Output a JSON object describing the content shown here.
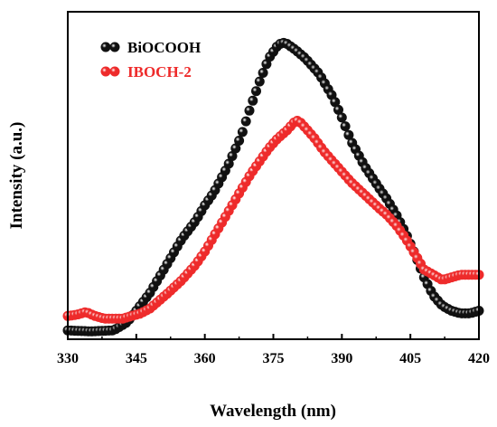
{
  "chart_data": {
    "type": "scatter",
    "xlabel": "Wavelength (nm)",
    "ylabel": "Intensity (a.u.)",
    "xlim": [
      330,
      420
    ],
    "ylim": [
      0,
      1
    ],
    "xticks": [
      "330",
      "345",
      "360",
      "375",
      "390",
      "405",
      "420"
    ],
    "yticks_shown": false,
    "grid": false,
    "legend_position": "top-left",
    "series": [
      {
        "name": "BiOCOOH",
        "color": "#111111",
        "x": [
          330,
          335,
          340,
          343,
          345,
          348,
          350,
          352,
          355,
          358,
          360,
          362,
          365,
          368,
          370,
          372,
          374,
          376,
          377,
          378,
          380,
          382,
          385,
          388,
          390,
          392,
          395,
          398,
          400,
          402,
          404,
          406,
          408,
          410,
          412,
          414,
          416,
          418,
          420
        ],
        "y": [
          0.027,
          0.024,
          0.027,
          0.052,
          0.087,
          0.142,
          0.189,
          0.236,
          0.307,
          0.362,
          0.409,
          0.449,
          0.528,
          0.622,
          0.709,
          0.787,
          0.858,
          0.898,
          0.906,
          0.902,
          0.882,
          0.858,
          0.811,
          0.74,
          0.677,
          0.606,
          0.528,
          0.465,
          0.425,
          0.378,
          0.323,
          0.26,
          0.189,
          0.134,
          0.102,
          0.087,
          0.079,
          0.079,
          0.087
        ]
      },
      {
        "name": "IBOCH-2",
        "color": "#ee2b2b",
        "x": [
          330,
          332,
          334,
          336,
          338,
          340,
          342,
          344,
          346,
          348,
          350,
          352,
          355,
          358,
          360,
          362,
          365,
          368,
          370,
          372,
          374,
          376,
          378,
          379,
          380,
          381,
          382,
          384,
          386,
          388,
          390,
          392,
          395,
          398,
          400,
          402,
          404,
          406,
          408,
          410,
          412,
          414,
          416,
          418,
          420
        ],
        "y": [
          0.071,
          0.075,
          0.083,
          0.071,
          0.063,
          0.063,
          0.063,
          0.071,
          0.079,
          0.094,
          0.118,
          0.142,
          0.181,
          0.228,
          0.268,
          0.315,
          0.386,
          0.457,
          0.504,
          0.543,
          0.583,
          0.614,
          0.638,
          0.654,
          0.669,
          0.661,
          0.646,
          0.614,
          0.575,
          0.543,
          0.512,
          0.48,
          0.441,
          0.402,
          0.378,
          0.346,
          0.307,
          0.26,
          0.213,
          0.197,
          0.181,
          0.189,
          0.197,
          0.197,
          0.197
        ]
      }
    ]
  }
}
